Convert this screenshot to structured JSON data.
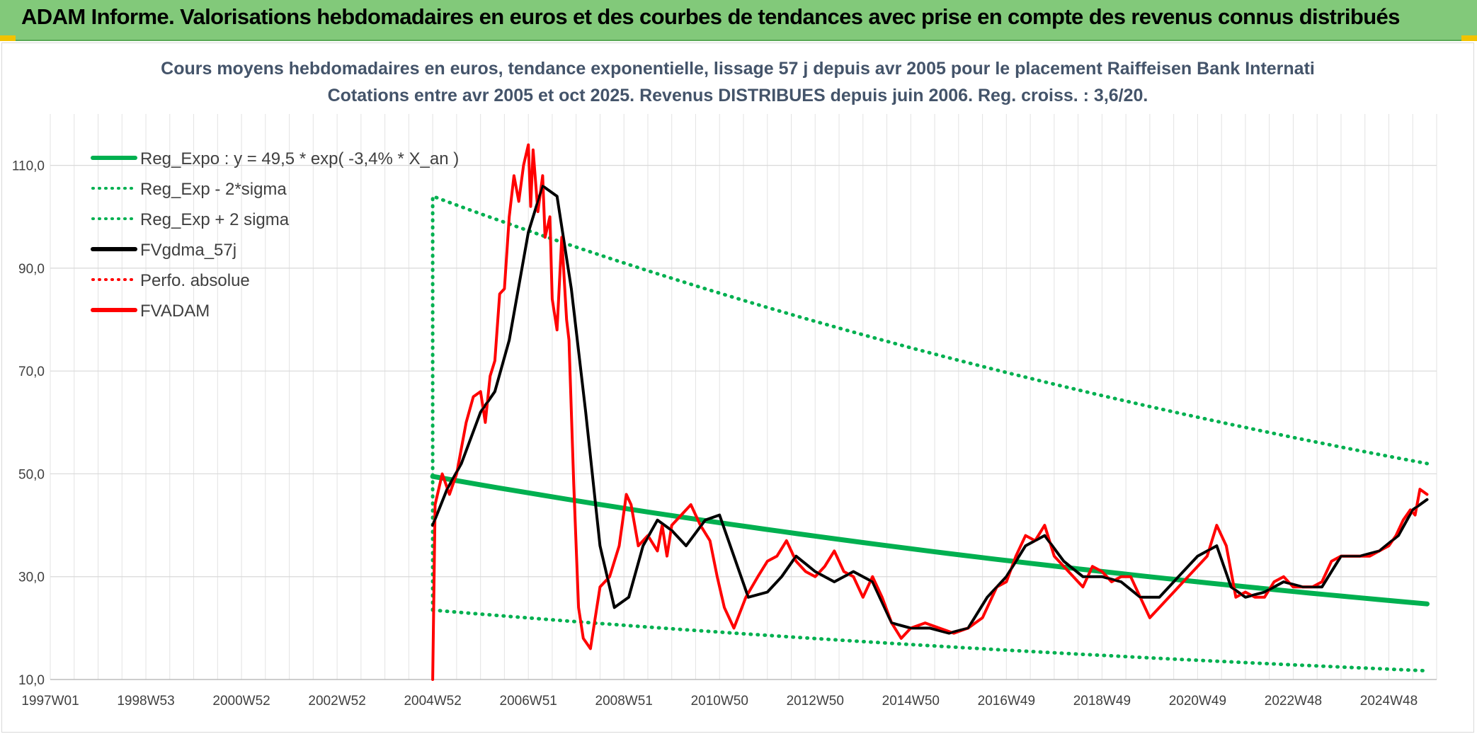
{
  "header": {
    "title": "ADAM Informe. Valorisations hebdomadaires en euros et des courbes de tendances avec prise en compte des revenus connus distribués",
    "background": "#82c97a"
  },
  "chart_data": {
    "type": "line",
    "title": [
      "Cours moyens hebdomadaires en euros, tendance exponentielle, lissage 57 j depuis avr 2005 pour le placement Raiffeisen Bank Internati",
      "Cotations entre avr 2005 et oct 2025. Revenus DISTRIBUES depuis juin 2006. Reg. croiss. : 3,6/20."
    ],
    "xlabel": "",
    "ylabel": "",
    "x_unit": "year (decimal)",
    "xlim": [
      1997.0,
      2026.0
    ],
    "ylim": [
      10,
      120
    ],
    "yticks": [
      10,
      30,
      50,
      70,
      90,
      110
    ],
    "ytick_labels": [
      "10,0",
      "30,0",
      "50,0",
      "70,0",
      "90,0",
      "110,0"
    ],
    "xtick_labels": [
      "1997W01",
      "1998W53",
      "2000W52",
      "2002W52",
      "2004W52",
      "2006W51",
      "2008W51",
      "2010W50",
      "2012W50",
      "2014W50",
      "2016W49",
      "2018W49",
      "2020W49",
      "2022W48",
      "2024W48"
    ],
    "xtick_values": [
      1997.0,
      1999.0,
      2001.0,
      2003.0,
      2005.0,
      2007.0,
      2009.0,
      2011.0,
      2013.0,
      2015.0,
      2017.0,
      2019.0,
      2021.0,
      2023.0,
      2025.0
    ],
    "grid": true,
    "legend_position": "top-left",
    "series": [
      {
        "name": "Reg_Expo : y = 49,5 * exp( -3,4% *  X_an )",
        "color": "#00b050",
        "style": "solid",
        "x": [
          2005.0,
          2025.8
        ],
        "y": [
          49.5,
          24.7
        ],
        "model": "exp"
      },
      {
        "name": "Reg_Exp - 2*sigma",
        "color": "#00b050",
        "style": "dotted",
        "x": [
          2005.0,
          2025.8
        ],
        "y": [
          23.5,
          11.7
        ],
        "model": "exp"
      },
      {
        "name": "Reg_Exp + 2 sigma",
        "color": "#00b050",
        "style": "dotted",
        "x": [
          2005.0,
          2025.8
        ],
        "y": [
          104.0,
          52.0
        ],
        "model": "exp",
        "start_from_y": 23.5
      },
      {
        "name": "FVgdma_57j",
        "color": "#000000",
        "style": "solid",
        "x": [
          2005.0,
          2005.3,
          2005.6,
          2006.0,
          2006.3,
          2006.6,
          2007.0,
          2007.3,
          2007.6,
          2007.9,
          2008.2,
          2008.5,
          2008.8,
          2009.1,
          2009.4,
          2009.7,
          2010.0,
          2010.3,
          2010.7,
          2011.0,
          2011.3,
          2011.6,
          2012.0,
          2012.3,
          2012.6,
          2013.0,
          2013.4,
          2013.8,
          2014.2,
          2014.6,
          2015.0,
          2015.4,
          2015.8,
          2016.2,
          2016.6,
          2017.0,
          2017.4,
          2017.8,
          2018.2,
          2018.6,
          2019.0,
          2019.4,
          2019.8,
          2020.2,
          2020.6,
          2021.0,
          2021.4,
          2021.7,
          2022.0,
          2022.4,
          2022.8,
          2023.2,
          2023.6,
          2024.0,
          2024.4,
          2024.8,
          2025.2,
          2025.5,
          2025.8
        ],
        "y": [
          40,
          47,
          52,
          62,
          66,
          76,
          97,
          106,
          104,
          86,
          62,
          36,
          24,
          26,
          36,
          41,
          39,
          36,
          41,
          42,
          34,
          26,
          27,
          30,
          34,
          31,
          29,
          31,
          29,
          21,
          20,
          20,
          19,
          20,
          26,
          30,
          36,
          38,
          33,
          30,
          30,
          29,
          26,
          26,
          30,
          34,
          36,
          28,
          26,
          27,
          29,
          28,
          28,
          34,
          34,
          35,
          38,
          43,
          45
        ]
      },
      {
        "name": "Perfo. absolue",
        "color": "#ff0000",
        "style": "dotted",
        "x": [],
        "y": []
      },
      {
        "name": "FVADAM",
        "color": "#ff0000",
        "style": "solid",
        "x": [
          2005.0,
          2005.05,
          2005.2,
          2005.35,
          2005.5,
          2005.7,
          2005.85,
          2006.0,
          2006.1,
          2006.2,
          2006.3,
          2006.4,
          2006.5,
          2006.6,
          2006.7,
          2006.8,
          2006.9,
          2007.0,
          2007.05,
          2007.1,
          2007.2,
          2007.3,
          2007.35,
          2007.45,
          2007.5,
          2007.6,
          2007.7,
          2007.8,
          2007.85,
          2007.95,
          2008.05,
          2008.15,
          2008.3,
          2008.5,
          2008.7,
          2008.9,
          2009.05,
          2009.15,
          2009.3,
          2009.5,
          2009.7,
          2009.8,
          2009.9,
          2010.0,
          2010.2,
          2010.4,
          2010.6,
          2010.8,
          2010.95,
          2011.1,
          2011.3,
          2011.55,
          2011.8,
          2012.0,
          2012.2,
          2012.4,
          2012.6,
          2012.8,
          2013.0,
          2013.2,
          2013.4,
          2013.6,
          2013.8,
          2014.0,
          2014.2,
          2014.4,
          2014.6,
          2014.8,
          2015.0,
          2015.3,
          2015.6,
          2015.9,
          2016.2,
          2016.5,
          2016.8,
          2017.0,
          2017.2,
          2017.4,
          2017.6,
          2017.8,
          2018.0,
          2018.2,
          2018.4,
          2018.6,
          2018.8,
          2019.0,
          2019.2,
          2019.4,
          2019.6,
          2019.8,
          2020.0,
          2020.2,
          2020.4,
          2020.6,
          2020.8,
          2021.0,
          2021.2,
          2021.4,
          2021.6,
          2021.8,
          2022.0,
          2022.2,
          2022.4,
          2022.6,
          2022.8,
          2023.0,
          2023.2,
          2023.4,
          2023.6,
          2023.8,
          2024.0,
          2024.2,
          2024.4,
          2024.6,
          2024.8,
          2025.0,
          2025.15,
          2025.3,
          2025.45,
          2025.55,
          2025.65,
          2025.8
        ],
        "y": [
          10,
          44,
          50,
          46,
          50,
          60,
          65,
          66,
          60,
          69,
          72,
          85,
          86,
          100,
          108,
          103,
          110,
          114,
          102,
          113,
          101,
          108,
          96,
          100,
          84,
          78,
          96,
          80,
          76,
          48,
          24,
          18,
          16,
          28,
          30,
          36,
          46,
          44,
          36,
          38,
          35,
          40,
          34,
          40,
          42,
          44,
          40,
          37,
          30,
          24,
          20,
          26,
          30,
          33,
          34,
          37,
          33,
          31,
          30,
          32,
          35,
          31,
          30,
          26,
          30,
          26,
          21,
          18,
          20,
          21,
          20,
          19,
          20,
          22,
          28,
          29,
          34,
          38,
          37,
          40,
          34,
          32,
          30,
          28,
          32,
          31,
          29,
          30,
          30,
          26,
          22,
          24,
          26,
          28,
          30,
          32,
          34,
          40,
          36,
          26,
          27,
          26,
          26,
          29,
          30,
          28,
          28,
          28,
          29,
          33,
          34,
          34,
          34,
          34,
          35,
          36,
          38,
          41,
          43,
          42,
          47,
          46
        ]
      }
    ]
  }
}
